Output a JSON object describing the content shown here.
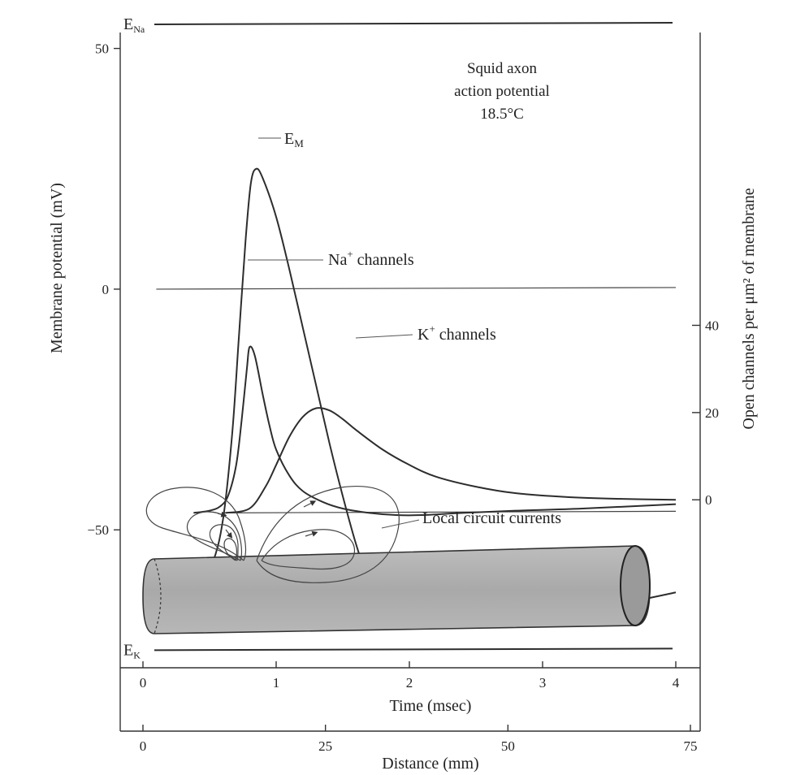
{
  "chart_data": {
    "type": "line",
    "title_lines": [
      "Squid axon",
      "action potential",
      "18.5°C"
    ],
    "left_axis": {
      "label": "Membrane potential (mV)",
      "ylim": [
        -80,
        55
      ],
      "ticks": [
        {
          "v": 50,
          "label": "50"
        },
        {
          "v": 0,
          "label": "0"
        },
        {
          "v": -50,
          "label": "−50"
        }
      ]
    },
    "right_axis": {
      "label": "Open channels per μm² of membrane",
      "ylim": [
        -40,
        109
      ],
      "ticks": [
        {
          "v": 40,
          "label": "40"
        },
        {
          "v": 20,
          "label": "20"
        },
        {
          "v": 0,
          "label": "0"
        }
      ]
    },
    "time_axis": {
      "label": "Time (msec)",
      "xlim": [
        0,
        4
      ],
      "ticks": [
        {
          "v": 0,
          "label": "0"
        },
        {
          "v": 1,
          "label": "1"
        },
        {
          "v": 2,
          "label": "2"
        },
        {
          "v": 3,
          "label": "3"
        },
        {
          "v": 4,
          "label": "4"
        }
      ]
    },
    "distance_axis": {
      "label": "Distance (mm)",
      "xlim": [
        0,
        75
      ],
      "ticks": [
        {
          "v": 0,
          "label": "0"
        },
        {
          "v": 25,
          "label": "25"
        },
        {
          "v": 50,
          "label": "50"
        },
        {
          "v": 75,
          "label": "75"
        }
      ]
    },
    "reference_lines": [
      {
        "name": "E_Na",
        "label_main": "E",
        "label_sub": "Na",
        "y": 55
      },
      {
        "name": "E_K",
        "label_main": "E",
        "label_sub": "K",
        "y": -75
      }
    ],
    "series": [
      {
        "name": "E_M",
        "label_main": "E",
        "label_sub": "M",
        "axis": "left",
        "x": [
          0,
          0.2,
          0.4,
          0.52,
          0.6,
          0.67,
          0.72,
          0.77,
          0.81,
          0.85,
          0.9,
          1.0,
          1.1,
          1.2,
          1.3,
          1.4,
          1.5,
          1.6,
          1.7,
          1.8,
          1.9,
          2.0,
          2.2,
          2.4,
          2.7,
          3.0,
          3.3,
          3.6,
          4.0
        ],
        "y": [
          -64,
          -64,
          -62,
          -57,
          -48,
          -30,
          -10,
          10,
          22,
          25,
          23,
          15,
          4,
          -8,
          -20,
          -32,
          -43,
          -53,
          -61,
          -66,
          -68.5,
          -69.5,
          -70,
          -70,
          -69.3,
          -68.2,
          -66.8,
          -65.3,
          -63
        ]
      },
      {
        "name": "Na+ channels",
        "axis": "right",
        "x": [
          0.38,
          0.5,
          0.58,
          0.64,
          0.7,
          0.74,
          0.78,
          0.8,
          0.84,
          0.9,
          0.95,
          1.0,
          1.1,
          1.2,
          1.35,
          1.5,
          1.7,
          1.9,
          2.1,
          2.4,
          2.8,
          3.3,
          4.0
        ],
        "y": [
          -3,
          -2.5,
          -1.5,
          1,
          8,
          18,
          30,
          35,
          33,
          24,
          17,
          11.5,
          5.5,
          2,
          -0.5,
          -2,
          -3,
          -3.5,
          -3.5,
          -3,
          -2.5,
          -2,
          -1
        ]
      },
      {
        "name": "K+ channels",
        "axis": "right",
        "x": [
          0.62,
          0.8,
          0.92,
          1.0,
          1.1,
          1.2,
          1.3,
          1.4,
          1.5,
          1.6,
          1.8,
          2.0,
          2.2,
          2.5,
          2.8,
          3.2,
          3.6,
          4.0
        ],
        "y": [
          -3,
          -2,
          3,
          8,
          14.5,
          19,
          21,
          20.5,
          18.5,
          16,
          11.5,
          8,
          5.3,
          3,
          1.5,
          0.6,
          0.2,
          0
        ]
      }
    ],
    "baselines": [
      {
        "axis": "left",
        "value": 0,
        "x_start": 0.1,
        "x_end": 4.0
      },
      {
        "axis": "right",
        "value": -3,
        "x_start": 0.6,
        "x_end": 4.0
      }
    ],
    "annotations": {
      "em": {
        "main": "E",
        "sub": "M"
      },
      "na": {
        "main": "Na",
        "sup": "+",
        "rest": " channels"
      },
      "k": {
        "main": "K",
        "sup": "+",
        "rest": " channels"
      },
      "currents": "Local circuit currents"
    },
    "grid": false
  }
}
